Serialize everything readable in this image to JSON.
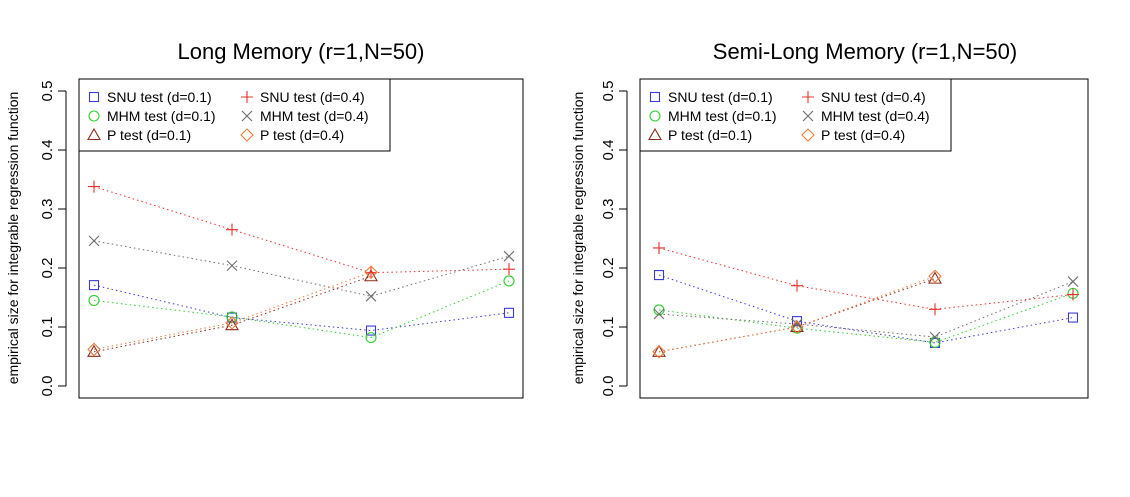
{
  "chart_data": [
    {
      "type": "scatter",
      "title": "Long Memory (r=1,N=50)",
      "xlabel": "",
      "ylabel": "empirical size for integrable regression function",
      "ylim": [
        0,
        0.5
      ],
      "yticks": [
        "0.0",
        "0.1",
        "0.2",
        "0.3",
        "0.4",
        "0.5"
      ],
      "x": [
        1,
        2,
        3,
        4
      ],
      "legend_position": "top-left",
      "series": [
        {
          "name": "SNU test (d=0.1)",
          "marker": "square",
          "color": "#3b3bd6",
          "values": [
            0.171,
            0.116,
            0.094,
            0.124
          ]
        },
        {
          "name": "MHM test (d=0.1)",
          "marker": "circle",
          "color": "#32cd32",
          "values": [
            0.145,
            0.117,
            0.082,
            0.178
          ]
        },
        {
          "name": "P test (d=0.1)",
          "marker": "triangle",
          "color": "#8b2c1a",
          "values": [
            0.058,
            0.103,
            0.186
          ]
        },
        {
          "name": "SNU test (d=0.4)",
          "marker": "plus",
          "color": "#e8322a",
          "values": [
            0.338,
            0.265,
            0.192,
            0.198
          ]
        },
        {
          "name": "MHM test (d=0.4)",
          "marker": "cross",
          "color": "#6e6e6e",
          "values": [
            0.246,
            0.204,
            0.152,
            0.22
          ]
        },
        {
          "name": "P test (d=0.4)",
          "marker": "diamond",
          "color": "#e87d3e",
          "values": [
            0.062,
            0.107,
            0.193
          ]
        }
      ]
    },
    {
      "type": "scatter",
      "title": "Semi-Long Memory (r=1,N=50)",
      "xlabel": "",
      "ylabel": "empirical size for integrable regression function",
      "ylim": [
        0,
        0.5
      ],
      "yticks": [
        "0.0",
        "0.1",
        "0.2",
        "0.3",
        "0.4",
        "0.5"
      ],
      "x": [
        1,
        2,
        3,
        4
      ],
      "legend_position": "top-left",
      "series": [
        {
          "name": "SNU test (d=0.1)",
          "marker": "square",
          "color": "#3b3bd6",
          "values": [
            0.188,
            0.11,
            0.073,
            0.116
          ]
        },
        {
          "name": "MHM test (d=0.1)",
          "marker": "circle",
          "color": "#32cd32",
          "values": [
            0.129,
            0.098,
            0.074,
            0.157
          ]
        },
        {
          "name": "P test (d=0.1)",
          "marker": "triangle",
          "color": "#8b2c1a",
          "values": [
            0.058,
            0.1,
            0.182
          ]
        },
        {
          "name": "SNU test (d=0.4)",
          "marker": "plus",
          "color": "#e8322a",
          "values": [
            0.234,
            0.17,
            0.13,
            0.155
          ]
        },
        {
          "name": "MHM test (d=0.4)",
          "marker": "cross",
          "color": "#6e6e6e",
          "values": [
            0.122,
            0.105,
            0.083,
            0.177
          ]
        },
        {
          "name": "P test (d=0.4)",
          "marker": "diamond",
          "color": "#e87d3e",
          "values": [
            0.058,
            0.1,
            0.186
          ]
        }
      ]
    }
  ]
}
